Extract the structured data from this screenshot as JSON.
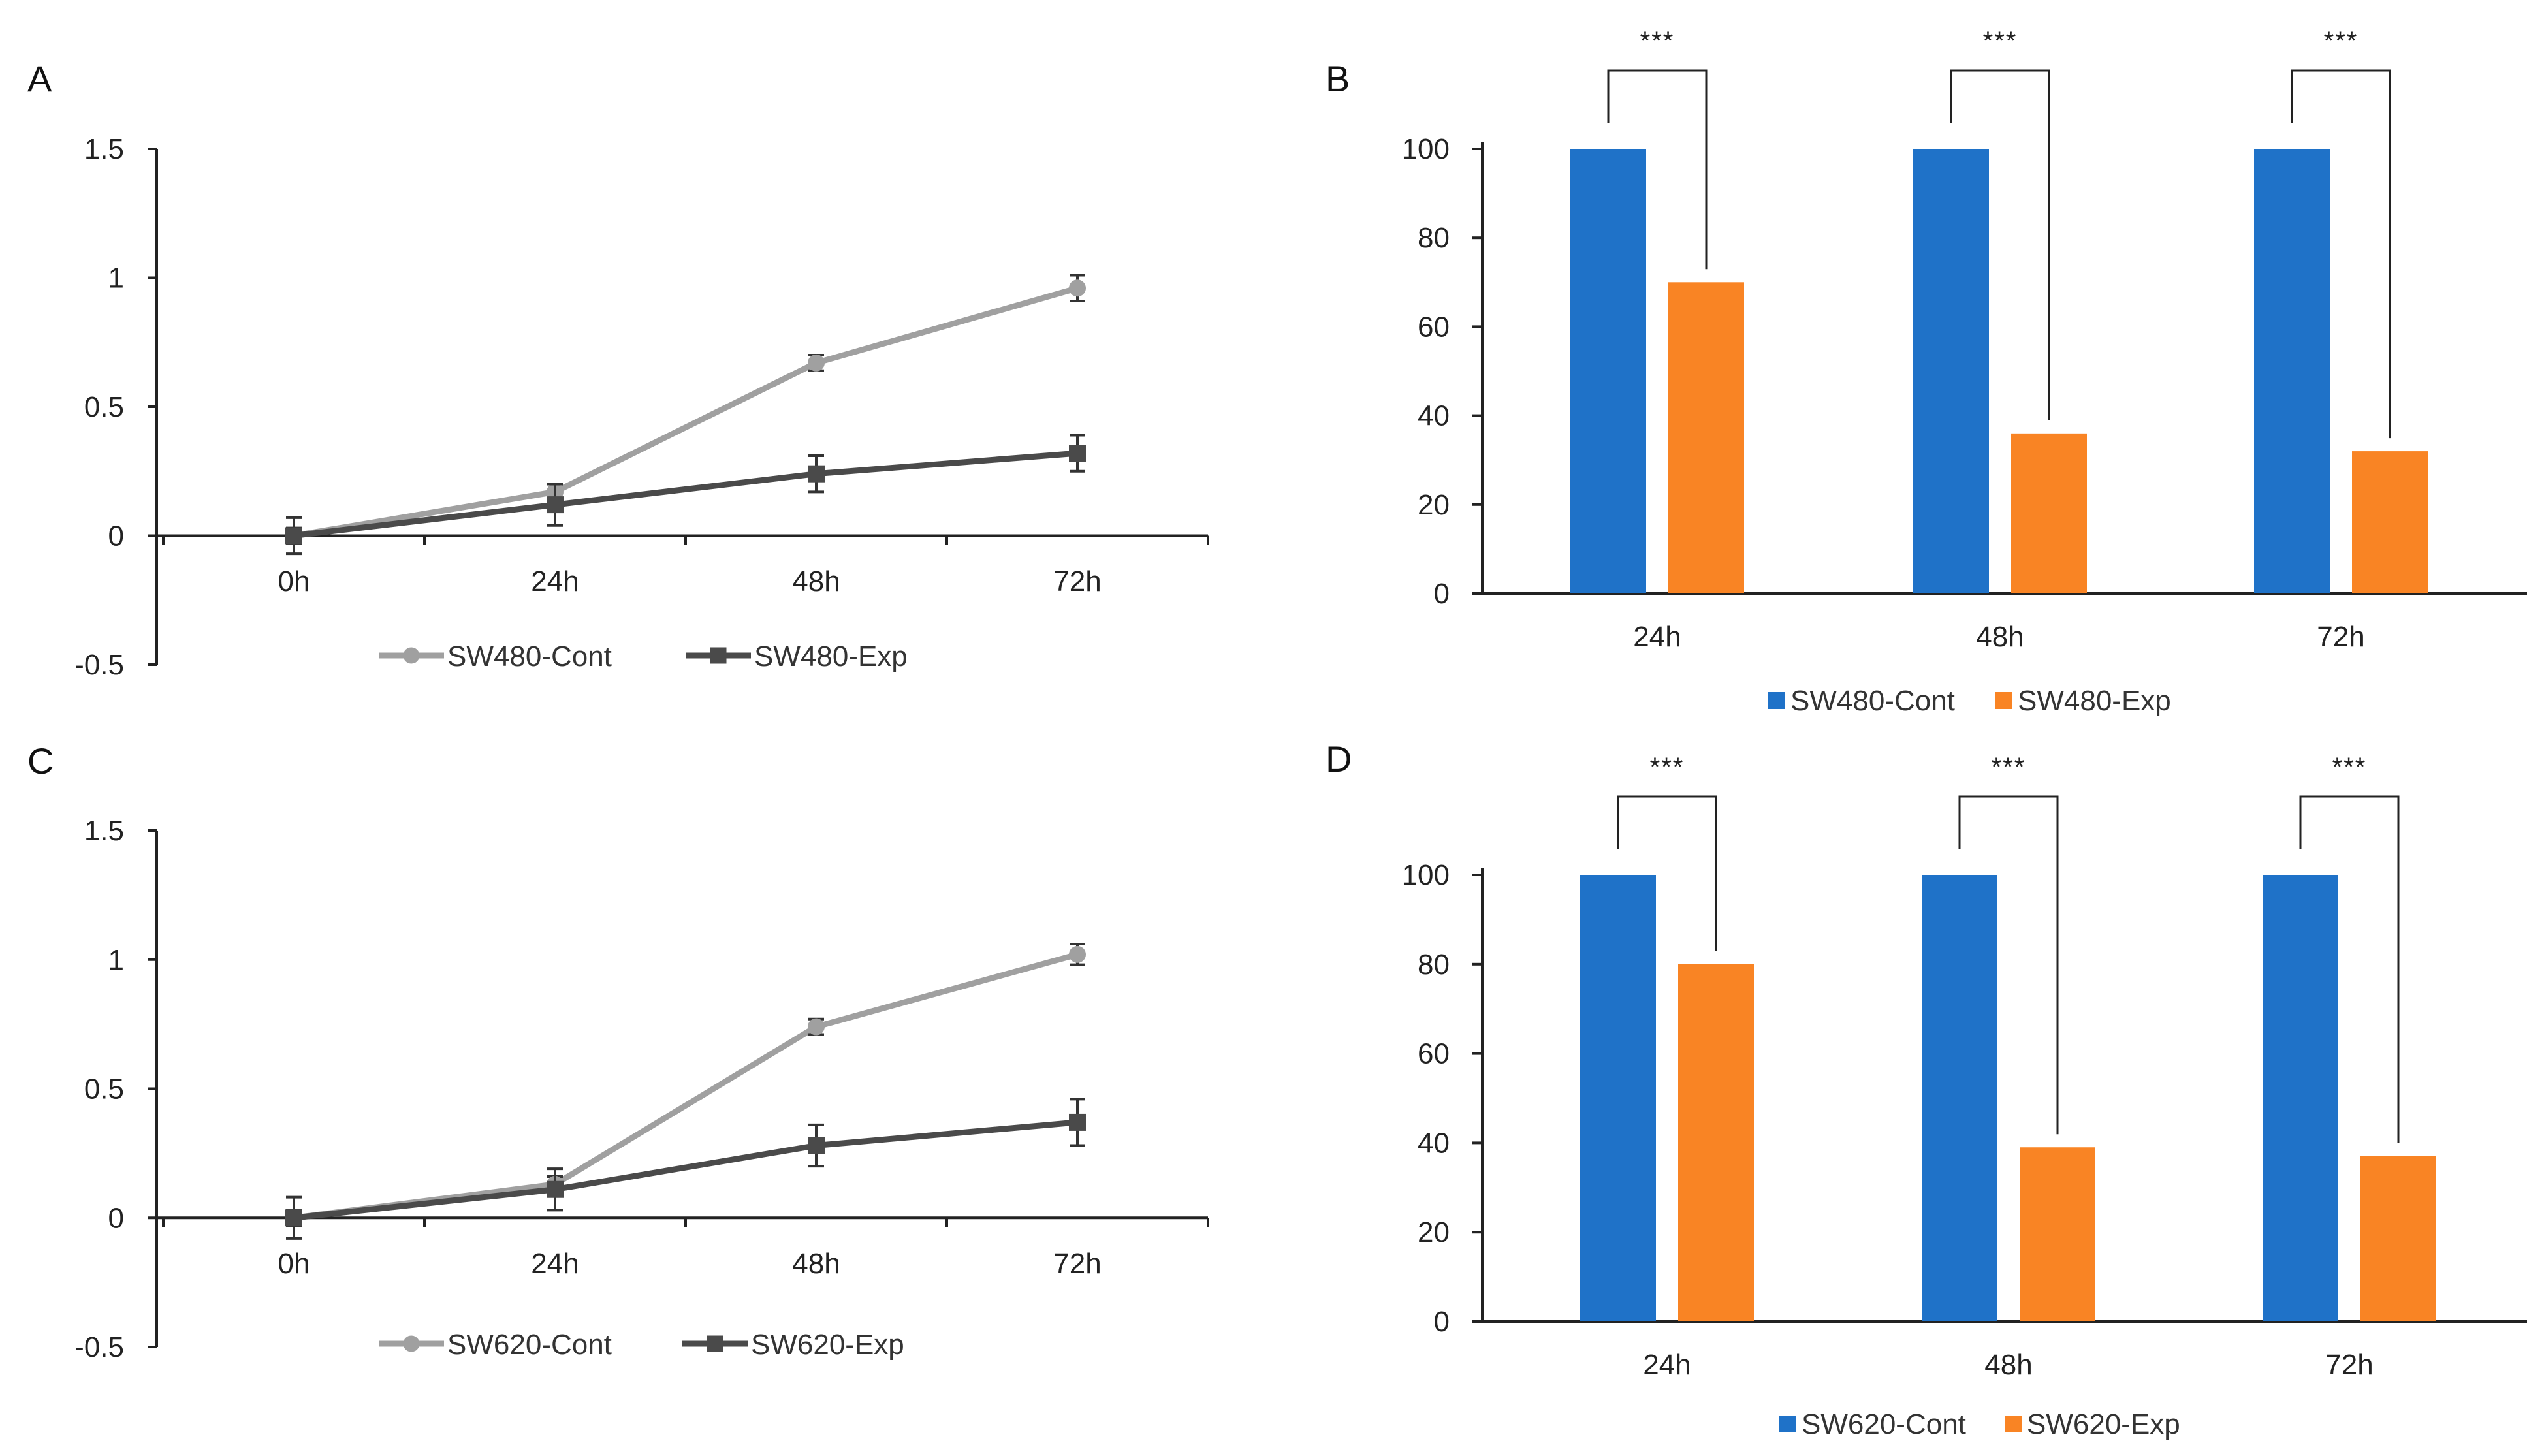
{
  "colors": {
    "line_cont": "#a0a0a0",
    "line_exp": "#4a4a4a",
    "bar_cont": "#1f72c8",
    "bar_exp": "#f98424",
    "axis": "#222222"
  },
  "chart_data": [
    {
      "panel": "A",
      "type": "line",
      "categories": [
        "0h",
        "24h",
        "48h",
        "72h"
      ],
      "yticks": [
        "1.5",
        "1",
        "0.5",
        "0",
        "-0.5"
      ],
      "ylim": [
        -0.5,
        1.5
      ],
      "series": [
        {
          "name": "SW480-Cont",
          "marker": "circle",
          "values": [
            0,
            0.17,
            0.67,
            0.96
          ],
          "errors": [
            0.03,
            0.03,
            0.03,
            0.05
          ]
        },
        {
          "name": "SW480-Exp",
          "marker": "square",
          "values": [
            0,
            0.12,
            0.24,
            0.32
          ],
          "errors": [
            0.07,
            0.08,
            0.07,
            0.07
          ]
        }
      ]
    },
    {
      "panel": "B",
      "type": "bar",
      "categories": [
        "24h",
        "48h",
        "72h"
      ],
      "yticks": [
        "100",
        "80",
        "60",
        "40",
        "20",
        "0"
      ],
      "ylim": [
        0,
        100
      ],
      "series": [
        {
          "name": "SW480-Cont",
          "values": [
            100,
            100,
            100
          ]
        },
        {
          "name": "SW480-Exp",
          "values": [
            70,
            36,
            32
          ]
        }
      ],
      "significance": [
        "***",
        "***",
        "***"
      ]
    },
    {
      "panel": "C",
      "type": "line",
      "categories": [
        "0h",
        "24h",
        "48h",
        "72h"
      ],
      "yticks": [
        "1.5",
        "1",
        "0.5",
        "0",
        "-0.5"
      ],
      "ylim": [
        -0.5,
        1.5
      ],
      "series": [
        {
          "name": "SW620-Cont",
          "marker": "circle",
          "values": [
            0,
            0.13,
            0.74,
            1.02
          ],
          "errors": [
            0.03,
            0.03,
            0.03,
            0.04
          ]
        },
        {
          "name": "SW620-Exp",
          "marker": "square",
          "values": [
            0,
            0.11,
            0.28,
            0.37
          ],
          "errors": [
            0.08,
            0.08,
            0.08,
            0.09
          ]
        }
      ]
    },
    {
      "panel": "D",
      "type": "bar",
      "categories": [
        "24h",
        "48h",
        "72h"
      ],
      "yticks": [
        "100",
        "80",
        "60",
        "40",
        "20",
        "0"
      ],
      "ylim": [
        0,
        100
      ],
      "series": [
        {
          "name": "SW620-Cont",
          "values": [
            100,
            100,
            100
          ]
        },
        {
          "name": "SW620-Exp",
          "values": [
            80,
            39,
            37
          ]
        }
      ],
      "significance": [
        "***",
        "***",
        "***"
      ]
    }
  ]
}
